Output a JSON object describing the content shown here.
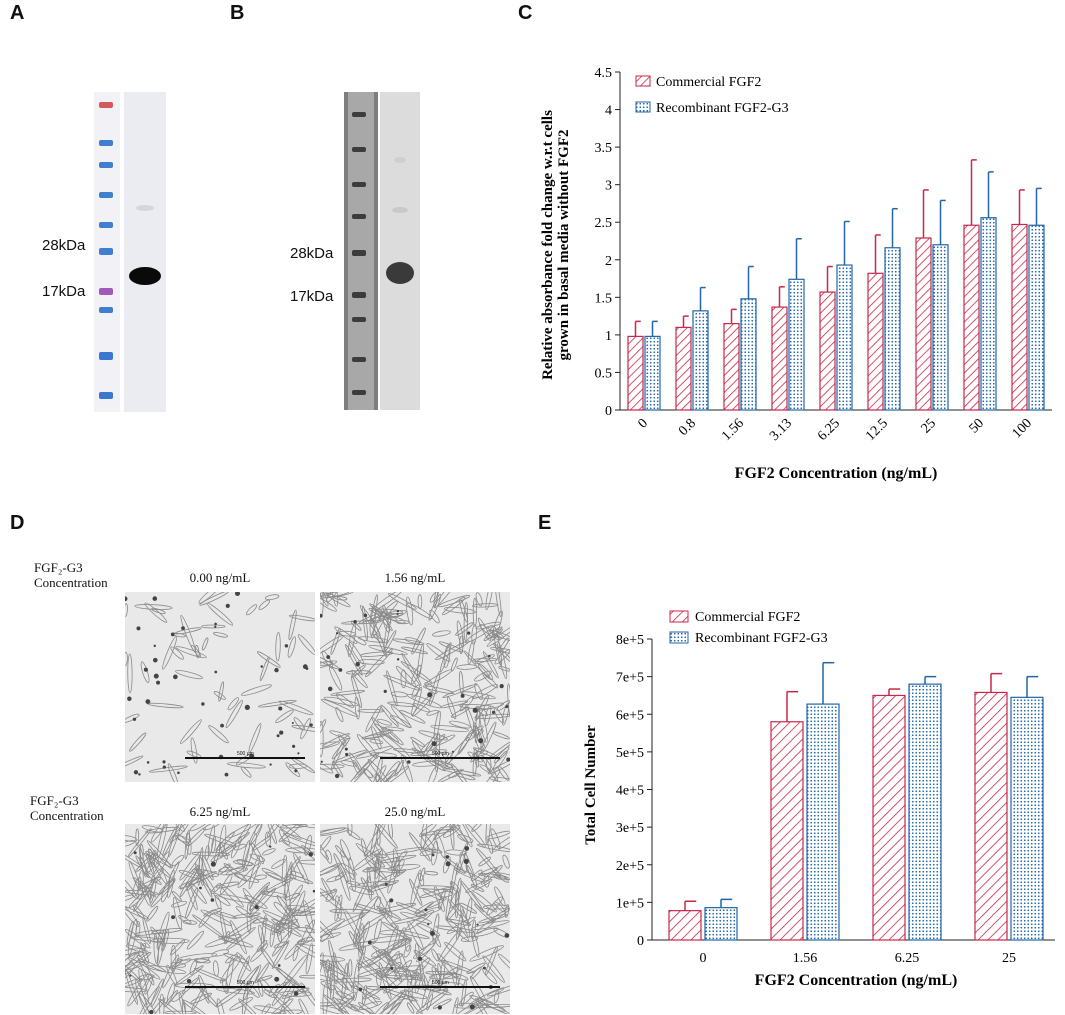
{
  "panels": {
    "a": "A",
    "b": "B",
    "c": "C",
    "d": "D",
    "e": "E"
  },
  "gel_a": {
    "marker_high": "28kDa",
    "marker_low": "17kDa"
  },
  "gel_b": {
    "marker_high": "28kDa",
    "marker_low": "17kDa"
  },
  "colors": {
    "commercial": "#c8264a",
    "recombinant": "#2166a8"
  },
  "panel_d": {
    "row_label_top_1": "FGF₂-G3",
    "row_label_top_2": "Concentration",
    "row_label_bottom_1": "FGF₂-G3",
    "row_label_bottom_2": "Concentration",
    "images": [
      {
        "label": "0.00 ng/mL",
        "scale": "500 µm"
      },
      {
        "label": "1.56 ng/mL",
        "scale": "500 µm"
      },
      {
        "label": "6.25 ng/mL",
        "scale": "500 µm"
      },
      {
        "label": "25.0 ng/mL",
        "scale": "500 µm"
      }
    ]
  },
  "chart_data": [
    {
      "id": "C",
      "type": "bar",
      "title": "",
      "xlabel": "FGF2 Concentration (ng/mL)",
      "ylabel": "Relative absorbance fold change w.r.t cells grown in basal media without FGF2",
      "ylabel_line1": "Relative absorbance fold change w.r.t cells",
      "ylabel_line2": "grown in basal media without FGF2",
      "ylim": [
        0,
        4.5
      ],
      "yticks": [
        "0",
        "0.5",
        "1",
        "1.5",
        "2",
        "2.5",
        "3",
        "3.5",
        "4",
        "4.5"
      ],
      "legend": "top-left",
      "categories": [
        "0",
        "0.8",
        "1.56",
        "3.13",
        "6.25",
        "12.5",
        "25",
        "50",
        "100"
      ],
      "series": [
        {
          "name": "Commercial FGF2",
          "values": [
            0.98,
            1.1,
            1.15,
            1.37,
            1.57,
            1.82,
            2.29,
            2.46,
            2.47
          ],
          "errors": [
            0.2,
            0.15,
            0.19,
            0.27,
            0.34,
            0.51,
            0.64,
            0.87,
            0.46
          ]
        },
        {
          "name": "Recombinant FGF2-G3",
          "values": [
            0.98,
            1.32,
            1.48,
            1.74,
            1.93,
            2.16,
            2.2,
            2.56,
            2.46
          ],
          "errors": [
            0.2,
            0.31,
            0.43,
            0.54,
            0.58,
            0.52,
            0.59,
            0.61,
            0.49
          ]
        }
      ]
    },
    {
      "id": "E",
      "type": "bar",
      "title": "",
      "xlabel": "FGF2 Concentration (ng/mL)",
      "ylabel": "Total Cell Number",
      "ylim": [
        0,
        800000
      ],
      "yticks": [
        "0",
        "1e+5",
        "2e+5",
        "3e+5",
        "4e+5",
        "5e+5",
        "6e+5",
        "7e+5",
        "8e+5"
      ],
      "legend": "top-left",
      "categories": [
        "0",
        "1.56",
        "6.25",
        "25"
      ],
      "series": [
        {
          "name": "Commercial FGF2",
          "values": [
            78000,
            580000,
            650000,
            658000
          ],
          "errors": [
            25000,
            80000,
            17000,
            50000
          ]
        },
        {
          "name": "Recombinant FGF2-G3",
          "values": [
            86000,
            627000,
            680000,
            645000
          ],
          "errors": [
            22000,
            110000,
            20000,
            55000
          ]
        }
      ]
    }
  ]
}
